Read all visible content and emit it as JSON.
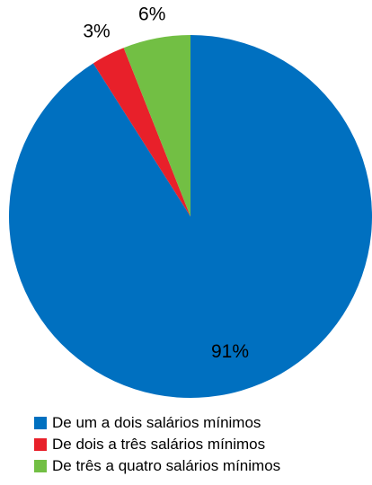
{
  "chart_data": {
    "type": "pie",
    "categories": [
      "De um a dois salários mínimos",
      "De dois a três salários mínimos",
      "De três a quatro salários mínimos"
    ],
    "values": [
      91,
      3,
      6
    ],
    "data_labels": [
      "91%",
      "3%",
      "6%"
    ],
    "colors": [
      "#0070C0",
      "#E8202A",
      "#72BF44"
    ],
    "legend_position": "bottom",
    "start_angle": "12 o'clock",
    "direction": "clockwise"
  }
}
